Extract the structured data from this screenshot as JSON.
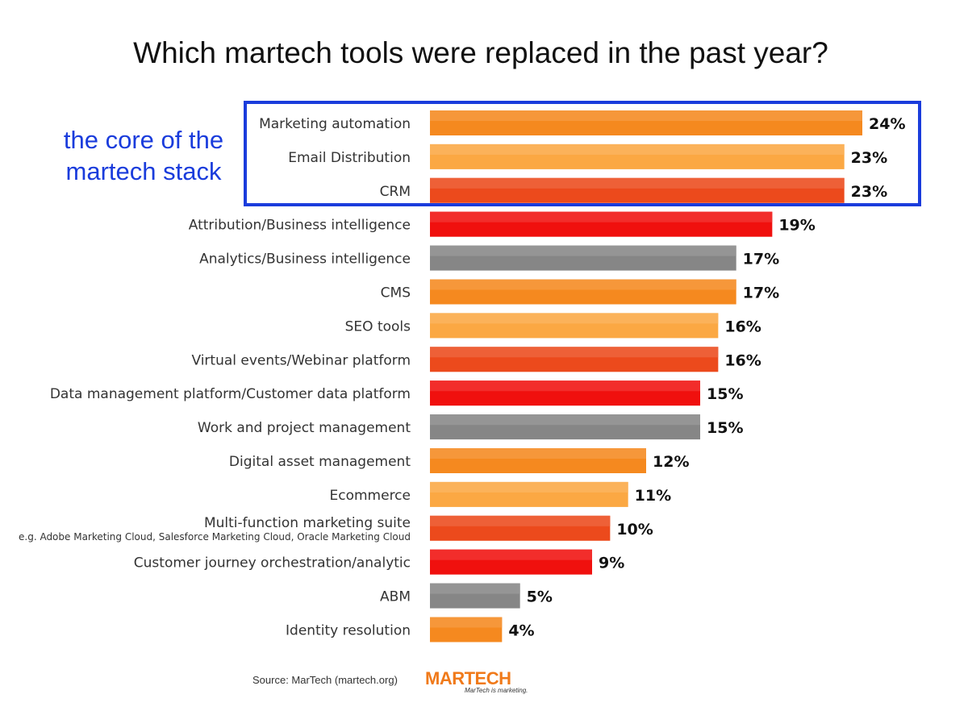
{
  "chart_data": {
    "type": "bar",
    "orientation": "horizontal",
    "title": "Which martech tools were replaced in the past year?",
    "xlabel": "",
    "ylabel": "",
    "xlim": [
      0,
      24
    ],
    "grid": false,
    "categories": [
      "Marketing automation",
      "Email Distribution",
      "CRM",
      "Attribution/Business intelligence",
      "Analytics/Business intelligence",
      "CMS",
      "SEO tools",
      "Virtual events/Webinar platform",
      "Data management platform/Customer data platform",
      "Work and project management",
      "Digital asset management",
      "Ecommerce",
      "Multi-function marketing suite",
      "Customer journey orchestration/analytic",
      "ABM",
      "Identity resolution"
    ],
    "sublabels": {
      "Multi-function marketing suite": "e.g. Adobe Marketing Cloud, Salesforce Marketing Cloud, Oracle Marketing Cloud"
    },
    "values": [
      24,
      23,
      23,
      19,
      17,
      17,
      16,
      16,
      15,
      15,
      12,
      11,
      10,
      9,
      5,
      4
    ],
    "value_labels": [
      "24%",
      "23%",
      "23%",
      "19%",
      "17%",
      "17%",
      "16%",
      "16%",
      "15%",
      "15%",
      "12%",
      "11%",
      "10%",
      "9%",
      "5%",
      "4%"
    ],
    "bar_colors": [
      "#f5891f",
      "#fba843",
      "#ec4a1c",
      "#f0100e",
      "#868686",
      "#f5891f",
      "#fba843",
      "#ec4a1c",
      "#f0100e",
      "#868686",
      "#f5891f",
      "#fba843",
      "#ec4a1c",
      "#f0100e",
      "#868686",
      "#f5891f"
    ],
    "annotations": [
      {
        "text_lines": [
          "the core of the",
          "martech stack"
        ],
        "highlights": [
          "Marketing automation",
          "Email Distribution",
          "CRM"
        ],
        "color": "#1a3cdc"
      }
    ]
  },
  "footer": {
    "source": "Source: MarTech (martech.org)",
    "logo_text": "MARTECH",
    "logo_tagline": "MarTech is marketing."
  }
}
